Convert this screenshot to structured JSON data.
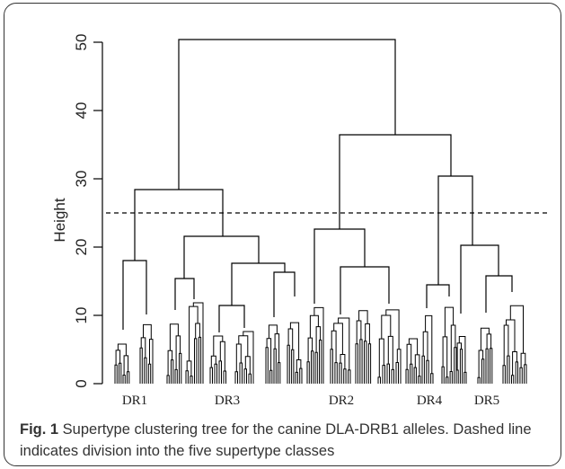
{
  "axis": {
    "ylabel": "Height",
    "yticks": [
      "0",
      "10",
      "20",
      "30",
      "40",
      "50"
    ]
  },
  "cut_height": 25,
  "clusters": [
    "DR1",
    "DR3",
    "DR2",
    "DR4",
    "DR5"
  ],
  "caption": {
    "label": "Fig. 1",
    "text": " Supertype clustering tree for the canine DLA-DRB1 alleles. Dashed line indicates division into the five supertype classes"
  }
}
